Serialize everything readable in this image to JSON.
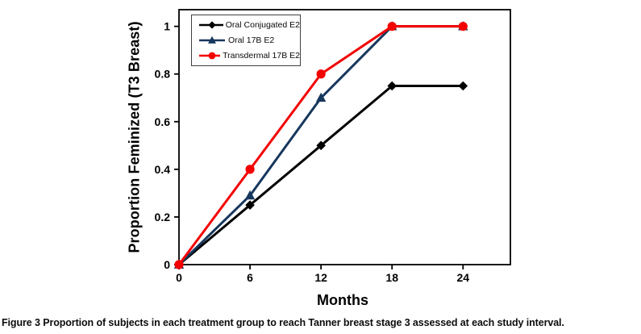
{
  "figure": {
    "caption_label": "Figure 3",
    "caption_text": "Proportion of subjects in each treatment group to reach Tanner breast stage 3 assessed at each study interval."
  },
  "chart_data": {
    "type": "line",
    "title": "",
    "xlabel": "Months",
    "ylabel": "Proportion Feminized (T3 Breast)",
    "x": [
      0,
      6,
      12,
      18,
      24
    ],
    "x_ticks": [
      0,
      6,
      12,
      18,
      24
    ],
    "y_ticks": [
      0,
      0.2,
      0.4,
      0.6,
      0.8,
      1
    ],
    "xlim": [
      0,
      28
    ],
    "ylim": [
      0,
      1.07
    ],
    "grid": false,
    "legend_position": "top-left",
    "axis_color": "#000000",
    "series": [
      {
        "name": "Oral Conjugated E2",
        "color": "#000000",
        "marker": "diamond",
        "values": [
          0,
          0.25,
          0.5,
          0.75,
          0.75
        ]
      },
      {
        "name": "Oral 17B E2",
        "color": "#17375D",
        "marker": "triangle",
        "values": [
          0,
          0.29,
          0.7,
          1,
          1
        ]
      },
      {
        "name": "Transdermal 17B E2",
        "color": "#F40000",
        "marker": "circle",
        "values": [
          0,
          0.4,
          0.8,
          1,
          1
        ]
      }
    ]
  }
}
